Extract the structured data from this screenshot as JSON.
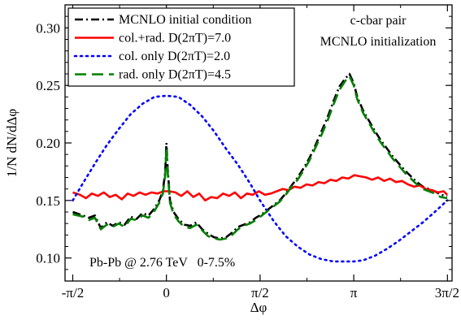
{
  "chart_data": {
    "type": "line",
    "title": "",
    "xlabel": "Δφ",
    "ylabel": "1/N dN/dΔφ",
    "xlim": [
      -1.7,
      4.79
    ],
    "ylim": [
      0.08,
      0.32
    ],
    "x_ticks": [
      {
        "value": -1.5708,
        "label": "-π/2"
      },
      {
        "value": 0,
        "label": "0"
      },
      {
        "value": 1.5708,
        "label": "π/2"
      },
      {
        "value": 3.1416,
        "label": "π"
      },
      {
        "value": 4.7124,
        "label": "3π/2"
      }
    ],
    "y_ticks": [
      {
        "value": 0.1,
        "label": "0.10"
      },
      {
        "value": 0.15,
        "label": "0.15"
      },
      {
        "value": 0.2,
        "label": "0.20"
      },
      {
        "value": 0.25,
        "label": "0.25"
      },
      {
        "value": 0.3,
        "label": "0.30"
      }
    ],
    "legend_position": "top-left",
    "annotations": [
      {
        "id": "pair",
        "lines": [
          "c-cbar pair",
          "MCNLO initialization"
        ]
      },
      {
        "id": "system",
        "lines": [
          "Pb-Pb @ 2.76 TeV   0-7.5%"
        ]
      }
    ],
    "series": [
      {
        "name": "MCNLO initial condition",
        "color": "#000000",
        "style": "dashdot",
        "x": [
          -1.57,
          -1.4,
          -1.3,
          -1.2,
          -1.1,
          -1.0,
          -0.9,
          -0.8,
          -0.7,
          -0.6,
          -0.5,
          -0.4,
          -0.3,
          -0.2,
          -0.12,
          -0.06,
          -0.02,
          0.0,
          0.02,
          0.06,
          0.12,
          0.2,
          0.3,
          0.4,
          0.5,
          0.6,
          0.7,
          0.8,
          0.9,
          1.0,
          1.1,
          1.2,
          1.3,
          1.4,
          1.5,
          1.6,
          1.7,
          1.8,
          1.9,
          2.0,
          2.1,
          2.2,
          2.3,
          2.4,
          2.5,
          2.6,
          2.7,
          2.8,
          2.9,
          3.0,
          3.07,
          3.1416,
          3.2,
          3.3,
          3.4,
          3.5,
          3.6,
          3.7,
          3.8,
          3.9,
          4.0,
          4.1,
          4.2,
          4.3,
          4.4,
          4.5,
          4.6,
          4.71
        ],
        "y": [
          0.14,
          0.137,
          0.135,
          0.137,
          0.126,
          0.131,
          0.128,
          0.131,
          0.129,
          0.136,
          0.134,
          0.139,
          0.137,
          0.143,
          0.15,
          0.158,
          0.175,
          0.2,
          0.178,
          0.15,
          0.14,
          0.134,
          0.129,
          0.128,
          0.131,
          0.125,
          0.121,
          0.118,
          0.117,
          0.118,
          0.122,
          0.127,
          0.129,
          0.131,
          0.135,
          0.138,
          0.142,
          0.146,
          0.15,
          0.156,
          0.163,
          0.17,
          0.178,
          0.187,
          0.198,
          0.21,
          0.222,
          0.236,
          0.249,
          0.256,
          0.26,
          0.252,
          0.24,
          0.228,
          0.219,
          0.21,
          0.202,
          0.195,
          0.188,
          0.182,
          0.176,
          0.171,
          0.166,
          0.162,
          0.16,
          0.158,
          0.155,
          0.154
        ]
      },
      {
        "name": "col.+rad. D(2πT)=7.0",
        "color": "#ff0000",
        "style": "solid",
        "x": [
          -1.57,
          -1.45,
          -1.35,
          -1.25,
          -1.15,
          -1.05,
          -0.95,
          -0.85,
          -0.75,
          -0.65,
          -0.55,
          -0.45,
          -0.35,
          -0.25,
          -0.15,
          -0.05,
          0.05,
          0.15,
          0.25,
          0.35,
          0.45,
          0.55,
          0.65,
          0.75,
          0.85,
          0.95,
          1.05,
          1.15,
          1.25,
          1.35,
          1.45,
          1.55,
          1.65,
          1.75,
          1.85,
          1.95,
          2.05,
          2.15,
          2.25,
          2.35,
          2.45,
          2.55,
          2.65,
          2.75,
          2.85,
          2.95,
          3.05,
          3.15,
          3.25,
          3.35,
          3.45,
          3.55,
          3.65,
          3.75,
          3.85,
          3.95,
          4.05,
          4.15,
          4.25,
          4.35,
          4.45,
          4.55,
          4.65,
          4.71
        ],
        "y": [
          0.157,
          0.155,
          0.152,
          0.156,
          0.154,
          0.157,
          0.153,
          0.155,
          0.151,
          0.156,
          0.154,
          0.157,
          0.155,
          0.157,
          0.156,
          0.158,
          0.158,
          0.157,
          0.154,
          0.158,
          0.153,
          0.156,
          0.15,
          0.153,
          0.152,
          0.156,
          0.154,
          0.157,
          0.152,
          0.156,
          0.155,
          0.158,
          0.155,
          0.156,
          0.158,
          0.16,
          0.159,
          0.162,
          0.161,
          0.164,
          0.163,
          0.166,
          0.165,
          0.168,
          0.167,
          0.17,
          0.169,
          0.172,
          0.171,
          0.17,
          0.168,
          0.17,
          0.167,
          0.169,
          0.166,
          0.167,
          0.164,
          0.162,
          0.163,
          0.16,
          0.159,
          0.157,
          0.158,
          0.155
        ]
      },
      {
        "name": "col. only D(2πT)=2.0",
        "color": "#0000ff",
        "style": "dotted",
        "x": [
          -1.57,
          -1.4,
          -1.2,
          -1.0,
          -0.8,
          -0.6,
          -0.4,
          -0.2,
          0.0,
          0.2,
          0.4,
          0.6,
          0.8,
          1.0,
          1.2,
          1.4,
          1.57,
          1.8,
          2.0,
          2.2,
          2.4,
          2.6,
          2.8,
          3.0,
          3.1416,
          3.3,
          3.5,
          3.7,
          3.9,
          4.1,
          4.3,
          4.5,
          4.71
        ],
        "y": [
          0.15,
          0.165,
          0.182,
          0.198,
          0.212,
          0.225,
          0.234,
          0.24,
          0.241,
          0.24,
          0.233,
          0.223,
          0.21,
          0.195,
          0.181,
          0.165,
          0.15,
          0.132,
          0.119,
          0.11,
          0.103,
          0.099,
          0.097,
          0.097,
          0.097,
          0.098,
          0.102,
          0.108,
          0.115,
          0.123,
          0.131,
          0.14,
          0.15
        ]
      },
      {
        "name": "rad. only D(2πT)=4.5",
        "color": "#008000",
        "style": "dashed",
        "x": [
          -1.57,
          -1.4,
          -1.3,
          -1.2,
          -1.1,
          -1.0,
          -0.9,
          -0.8,
          -0.7,
          -0.6,
          -0.5,
          -0.4,
          -0.3,
          -0.2,
          -0.12,
          -0.06,
          -0.02,
          0.0,
          0.02,
          0.06,
          0.12,
          0.2,
          0.3,
          0.4,
          0.5,
          0.6,
          0.7,
          0.8,
          0.9,
          1.0,
          1.1,
          1.2,
          1.3,
          1.4,
          1.5,
          1.6,
          1.7,
          1.8,
          1.9,
          2.0,
          2.1,
          2.2,
          2.3,
          2.4,
          2.5,
          2.6,
          2.7,
          2.8,
          2.9,
          3.0,
          3.07,
          3.1416,
          3.2,
          3.3,
          3.4,
          3.5,
          3.6,
          3.7,
          3.8,
          3.9,
          4.0,
          4.1,
          4.2,
          4.3,
          4.4,
          4.5,
          4.6,
          4.71
        ],
        "y": [
          0.138,
          0.136,
          0.133,
          0.135,
          0.125,
          0.129,
          0.127,
          0.13,
          0.127,
          0.134,
          0.133,
          0.137,
          0.135,
          0.141,
          0.148,
          0.156,
          0.172,
          0.196,
          0.175,
          0.148,
          0.138,
          0.132,
          0.127,
          0.126,
          0.129,
          0.124,
          0.119,
          0.117,
          0.116,
          0.117,
          0.12,
          0.125,
          0.128,
          0.13,
          0.133,
          0.137,
          0.141,
          0.145,
          0.149,
          0.155,
          0.162,
          0.168,
          0.176,
          0.185,
          0.196,
          0.207,
          0.219,
          0.233,
          0.246,
          0.254,
          0.258,
          0.25,
          0.238,
          0.226,
          0.217,
          0.208,
          0.2,
          0.193,
          0.186,
          0.18,
          0.174,
          0.169,
          0.164,
          0.16,
          0.158,
          0.156,
          0.153,
          0.152
        ]
      }
    ]
  }
}
